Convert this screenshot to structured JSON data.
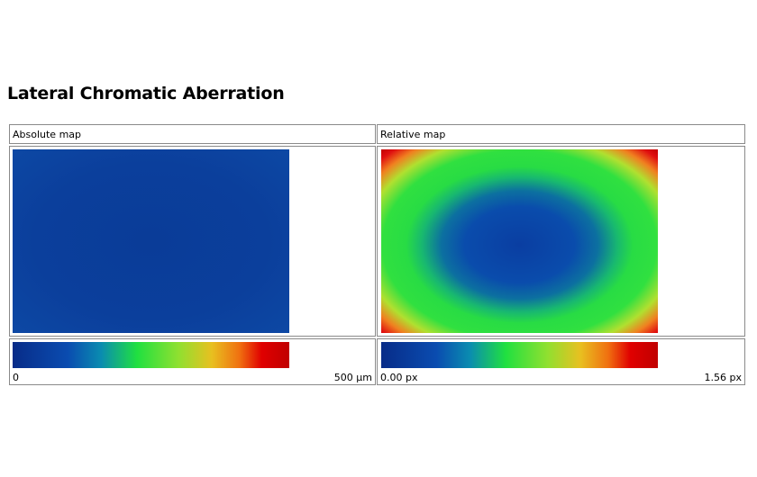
{
  "title": "Lateral Chromatic Aberration",
  "panels": [
    {
      "label": "Absolute map",
      "scale_min": "0",
      "scale_max": "500 µm"
    },
    {
      "label": "Relative map",
      "scale_min": "0.00 px",
      "scale_max": "1.56 px"
    }
  ]
}
